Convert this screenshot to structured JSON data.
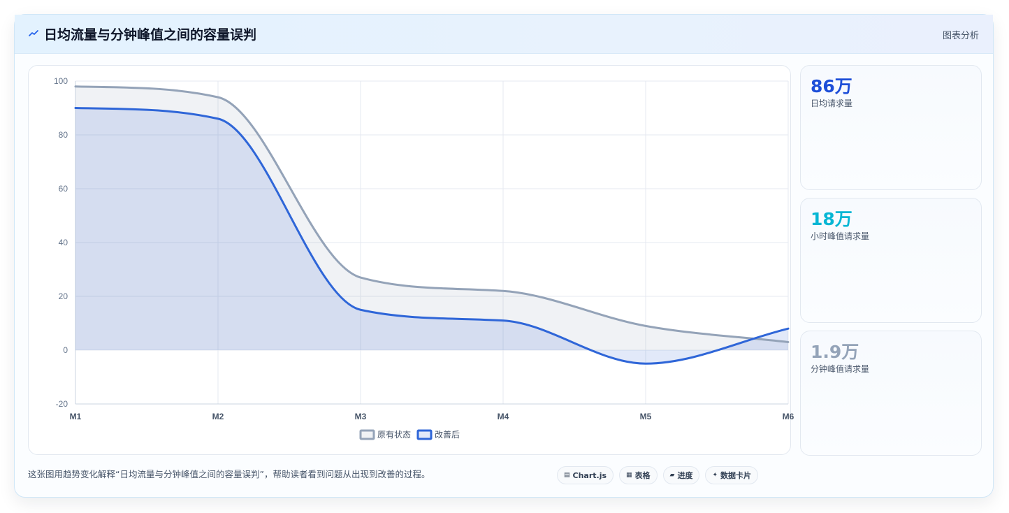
{
  "header": {
    "title": "日均流量与分钟峰值之间的容量误判",
    "action_label": "图表分析",
    "icon": "trend-icon"
  },
  "chart_data": {
    "type": "line",
    "categories": [
      "M1",
      "M2",
      "M3",
      "M4",
      "M5",
      "M6"
    ],
    "yticks": [
      "100",
      "80",
      "60",
      "40",
      "20",
      "0",
      "-20"
    ],
    "ylim": [
      -20,
      100
    ],
    "grid": true,
    "fill": true,
    "smooth": true,
    "legend_position": "bottom",
    "series": [
      {
        "name": "原有状态",
        "values": [
          98,
          94,
          27,
          22,
          9,
          3
        ],
        "color": "#94a3b8"
      },
      {
        "name": "改善后",
        "values": [
          90,
          86,
          15,
          11,
          -5,
          8
        ],
        "color": "#2f66d8"
      }
    ]
  },
  "stats": [
    {
      "value": "86万",
      "label": "日均请求量",
      "color": "#1d4ed8"
    },
    {
      "value": "18万",
      "label": "小时峰值请求量",
      "color": "#06b6d4"
    },
    {
      "value": "1.9万",
      "label": "分钟峰值请求量",
      "color": "#94a3b8"
    }
  ],
  "footer": {
    "text": "这张图用趋势变化解释“日均流量与分钟峰值之间的容量误判”，帮助读者看到问题从出现到改善的过程。",
    "chips": [
      {
        "icon": "chart-icon",
        "glyph": "▤",
        "label": "Chart.js"
      },
      {
        "icon": "table-icon",
        "glyph": "▦",
        "label": "表格"
      },
      {
        "icon": "progress-icon",
        "glyph": "▰",
        "label": "进度"
      },
      {
        "icon": "card-icon",
        "glyph": "✦",
        "label": "数据卡片"
      }
    ]
  }
}
